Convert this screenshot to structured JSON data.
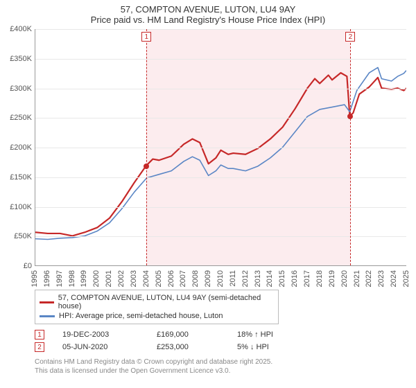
{
  "title": {
    "line1": "57, COMPTON AVENUE, LUTON, LU4 9AY",
    "line2": "Price paid vs. HM Land Registry's House Price Index (HPI)",
    "fontsize": 13
  },
  "chart": {
    "type": "line",
    "background_color": "#ffffff",
    "grid_color": "#e8e8e8",
    "axis_color": "#999999",
    "label_color": "#555555",
    "label_fontsize": 11,
    "y": {
      "min": 0,
      "max": 400000,
      "step": 50000,
      "labels": [
        "£0",
        "£50K",
        "£100K",
        "£150K",
        "£200K",
        "£250K",
        "£300K",
        "£350K",
        "£400K"
      ]
    },
    "x": {
      "min": 1995,
      "max": 2025,
      "step": 1,
      "labels": [
        "1995",
        "1996",
        "1997",
        "1998",
        "1999",
        "2000",
        "2001",
        "2002",
        "2003",
        "2004",
        "2005",
        "2006",
        "2007",
        "2008",
        "2009",
        "2010",
        "2011",
        "2012",
        "2013",
        "2014",
        "2015",
        "2016",
        "2017",
        "2018",
        "2019",
        "2020",
        "2021",
        "2022",
        "2023",
        "2024",
        "2025"
      ]
    },
    "shade": {
      "from_year": 2003.97,
      "to_year": 2020.43,
      "color": "#fcecee"
    },
    "series": [
      {
        "name": "price_paid",
        "color": "#c62828",
        "width": 2.2,
        "points": [
          [
            1995,
            56000
          ],
          [
            1996,
            54000
          ],
          [
            1997,
            54000
          ],
          [
            1998,
            50000
          ],
          [
            1999,
            56000
          ],
          [
            2000,
            64000
          ],
          [
            2001,
            80000
          ],
          [
            2002,
            108000
          ],
          [
            2003,
            140000
          ],
          [
            2003.97,
            169000
          ],
          [
            2004.5,
            180000
          ],
          [
            2005,
            178000
          ],
          [
            2006,
            185000
          ],
          [
            2007,
            205000
          ],
          [
            2007.7,
            214000
          ],
          [
            2008.3,
            208000
          ],
          [
            2009,
            172000
          ],
          [
            2009.6,
            182000
          ],
          [
            2010,
            195000
          ],
          [
            2010.6,
            188000
          ],
          [
            2011,
            190000
          ],
          [
            2012,
            188000
          ],
          [
            2013,
            198000
          ],
          [
            2014,
            214000
          ],
          [
            2015,
            234000
          ],
          [
            2016,
            265000
          ],
          [
            2017,
            300000
          ],
          [
            2017.6,
            316000
          ],
          [
            2018,
            308000
          ],
          [
            2018.7,
            322000
          ],
          [
            2019,
            314000
          ],
          [
            2019.7,
            326000
          ],
          [
            2020.2,
            320000
          ],
          [
            2020.43,
            253000
          ],
          [
            2020.7,
            258000
          ],
          [
            2021.2,
            290000
          ],
          [
            2022,
            302000
          ],
          [
            2022.7,
            318000
          ],
          [
            2023,
            300000
          ],
          [
            2023.8,
            298000
          ],
          [
            2024.3,
            300000
          ],
          [
            2024.8,
            296000
          ],
          [
            2025,
            300000
          ]
        ]
      },
      {
        "name": "hpi",
        "color": "#5a86c5",
        "width": 1.6,
        "points": [
          [
            1995,
            45000
          ],
          [
            1996,
            44000
          ],
          [
            1997,
            46000
          ],
          [
            1998,
            47000
          ],
          [
            1999,
            50000
          ],
          [
            2000,
            58000
          ],
          [
            2001,
            72000
          ],
          [
            2002,
            96000
          ],
          [
            2003,
            124000
          ],
          [
            2004,
            148000
          ],
          [
            2005,
            154000
          ],
          [
            2006,
            160000
          ],
          [
            2007,
            176000
          ],
          [
            2007.7,
            184000
          ],
          [
            2008.3,
            178000
          ],
          [
            2009,
            152000
          ],
          [
            2009.6,
            160000
          ],
          [
            2010,
            170000
          ],
          [
            2010.6,
            164000
          ],
          [
            2011,
            164000
          ],
          [
            2012,
            160000
          ],
          [
            2013,
            168000
          ],
          [
            2014,
            182000
          ],
          [
            2015,
            200000
          ],
          [
            2016,
            226000
          ],
          [
            2017,
            252000
          ],
          [
            2018,
            264000
          ],
          [
            2019,
            268000
          ],
          [
            2020,
            272000
          ],
          [
            2020.43,
            260000
          ],
          [
            2021,
            296000
          ],
          [
            2022,
            326000
          ],
          [
            2022.7,
            335000
          ],
          [
            2023,
            316000
          ],
          [
            2023.8,
            312000
          ],
          [
            2024.3,
            320000
          ],
          [
            2024.8,
            325000
          ],
          [
            2025,
            330000
          ]
        ]
      }
    ],
    "markers": [
      {
        "n": "1",
        "year": 2003.97,
        "value": 169000
      },
      {
        "n": "2",
        "year": 2020.43,
        "value": 253000
      }
    ],
    "marker_color": "#c62828"
  },
  "legend": {
    "border_color": "#bbbbbb",
    "items": [
      {
        "color": "#c62828",
        "label": "57, COMPTON AVENUE, LUTON, LU4 9AY (semi-detached house)"
      },
      {
        "color": "#5a86c5",
        "label": "HPI: Average price, semi-detached house, Luton"
      }
    ]
  },
  "events": [
    {
      "n": "1",
      "date": "19-DEC-2003",
      "price": "£169,000",
      "delta": "18% ↑ HPI"
    },
    {
      "n": "2",
      "date": "05-JUN-2020",
      "price": "£253,000",
      "delta": "5% ↓ HPI"
    }
  ],
  "footer": {
    "line1": "Contains HM Land Registry data © Crown copyright and database right 2025.",
    "line2": "This data is licensed under the Open Government Licence v3.0."
  }
}
